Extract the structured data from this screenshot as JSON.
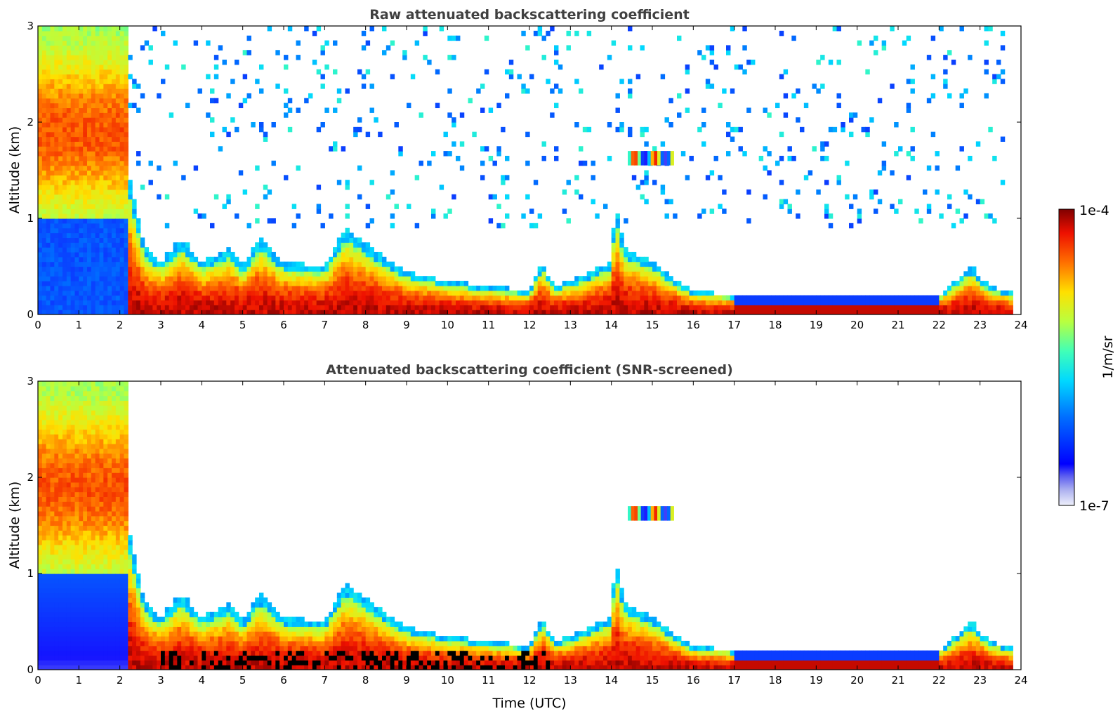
{
  "chart_data": [
    {
      "type": "heatmap",
      "title": "Raw attenuated backscattering coefficient",
      "xlabel": "",
      "ylabel": "Altitude (km)",
      "xlim": [
        0,
        24
      ],
      "ylim": [
        0,
        3
      ],
      "xticks": [
        "0",
        "1",
        "2",
        "3",
        "4",
        "5",
        "6",
        "7",
        "8",
        "9",
        "10",
        "11",
        "12",
        "13",
        "14",
        "15",
        "16",
        "17",
        "18",
        "19",
        "20",
        "21",
        "22",
        "23",
        "24"
      ],
      "yticks": [
        "0",
        "1",
        "2",
        "3"
      ],
      "screened": false,
      "description_note": "Time-height lidar curtain: thick elevated aerosol layer 0-2 UTC up to ~3 km, boundary layer top ~0.3-0.9 km through the day, elevated layers near 14.5-15.5 UTC at ~1.6 km, noise at high altitude."
    },
    {
      "type": "heatmap",
      "title": "Attenuated backscattering coefficient (SNR-screened)",
      "xlabel": "Time (UTC)",
      "ylabel": "Altitude (km)",
      "xlim": [
        0,
        24
      ],
      "ylim": [
        0,
        3
      ],
      "xticks": [
        "0",
        "1",
        "2",
        "3",
        "4",
        "5",
        "6",
        "7",
        "8",
        "9",
        "10",
        "11",
        "12",
        "13",
        "14",
        "15",
        "16",
        "17",
        "18",
        "19",
        "20",
        "21",
        "22",
        "23",
        "24"
      ],
      "yticks": [
        "0",
        "1",
        "2",
        "3"
      ],
      "screened": true
    }
  ],
  "colorbar": {
    "label": "1/m/sr",
    "max_label": "1e-4",
    "min_label": "1e-7",
    "range": [
      1e-07,
      0.0001
    ],
    "scale": "log",
    "colormap": "jet"
  },
  "colors": {
    "axis": "#000000",
    "title": "#404040"
  }
}
